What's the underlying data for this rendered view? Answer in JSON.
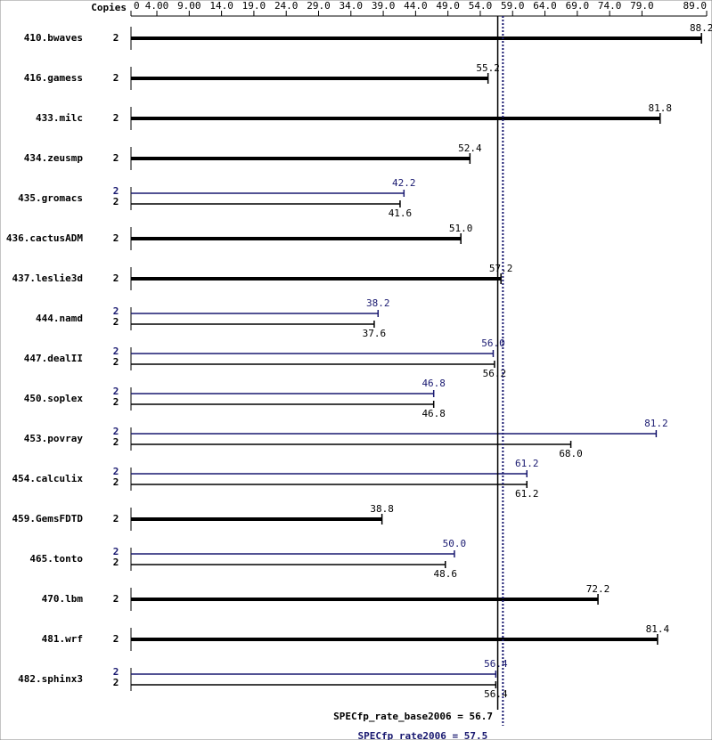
{
  "chart_data": {
    "type": "bar",
    "copies_label": "Copies",
    "categories": [
      "410.bwaves",
      "416.gamess",
      "433.milc",
      "434.zeusmp",
      "435.gromacs",
      "436.cactusADM",
      "437.leslie3d",
      "444.namd",
      "447.dealII",
      "450.soplex",
      "453.povray",
      "454.calculix",
      "459.GemsFDTD",
      "465.tonto",
      "470.lbm",
      "481.wrf",
      "482.sphinx3"
    ],
    "series": [
      {
        "color": "#000000",
        "copies": [
          2,
          2,
          2,
          2,
          2,
          2,
          2,
          2,
          2,
          2,
          2,
          2,
          2,
          2,
          2,
          2,
          2
        ],
        "values": [
          88.2,
          55.2,
          81.8,
          52.4,
          41.6,
          51,
          57.2,
          37.6,
          56.2,
          46.8,
          68,
          61.2,
          38.8,
          48.6,
          72.2,
          81.4,
          56.4
        ],
        "value_labels": [
          "88.2",
          "55.2",
          "81.8",
          "52.4",
          "41.6",
          "51.0",
          "57.2",
          "37.6",
          "56.2",
          "46.8",
          "68.0",
          "61.2",
          "38.8",
          "48.6",
          "72.2",
          "81.4",
          "56.4"
        ]
      },
      {
        "color": "#191970",
        "copies": [
          null,
          null,
          null,
          null,
          2,
          null,
          null,
          2,
          2,
          2,
          2,
          2,
          null,
          2,
          null,
          null,
          2
        ],
        "values": [
          null,
          null,
          null,
          null,
          42.2,
          null,
          null,
          38.2,
          56,
          46.8,
          81.2,
          61.2,
          null,
          50,
          null,
          null,
          56.4
        ],
        "value_labels": [
          null,
          null,
          null,
          null,
          "42.2",
          null,
          null,
          "38.2",
          "56.0",
          "46.8",
          "81.2",
          "61.2",
          null,
          "50.0",
          null,
          null,
          "56.4"
        ]
      }
    ],
    "xlim": [
      0,
      89
    ],
    "xticks": [
      0,
      {
        "value": 4,
        "label": "4.00"
      },
      {
        "value": 9,
        "label": "9.00"
      },
      {
        "value": 14,
        "label": "14.0"
      },
      {
        "value": 19,
        "label": "19.0"
      },
      {
        "value": 24,
        "label": "24.0"
      },
      {
        "value": 29,
        "label": "29.0"
      },
      {
        "value": 34,
        "label": "34.0"
      },
      {
        "value": 39,
        "label": "39.0"
      },
      {
        "value": 44,
        "label": "44.0"
      },
      {
        "value": 49,
        "label": "49.0"
      },
      {
        "value": 54,
        "label": "54.0"
      },
      {
        "value": 59,
        "label": "59.0"
      },
      {
        "value": 64,
        "label": "64.0"
      },
      {
        "value": 69,
        "label": "69.0"
      },
      {
        "value": 74,
        "label": "74.0"
      },
      {
        "value": 79,
        "label": "79.0"
      },
      {
        "value": 89,
        "label": "89.0"
      }
    ],
    "reference_lines": [
      {
        "value": 56.7,
        "label": "SPECfp_rate_base2006 = 56.7",
        "color": "#000000",
        "style": "solid"
      },
      {
        "value": 57.5,
        "label": "SPECfp_rate2006 = 57.5",
        "color": "#191970",
        "style": "dotted"
      }
    ]
  }
}
